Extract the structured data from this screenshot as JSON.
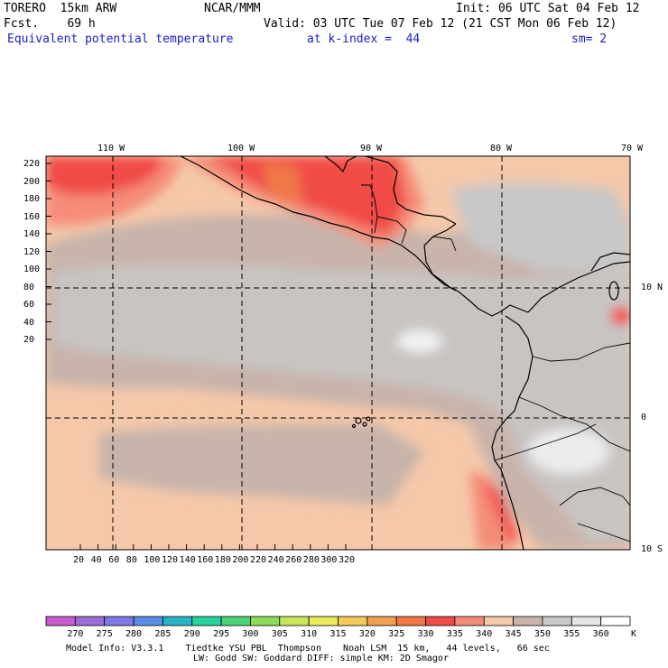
{
  "header": {
    "model": "TORERO  15km ARW",
    "center": "NCAR/MMM",
    "init": "Init: 06 UTC Sat 04 Feb 12",
    "fcst": "Fcst.    69 h",
    "valid": "Valid: 03 UTC Tue 07 Feb 12 (21 CST Mon 06 Feb 12)",
    "field": "Equivalent potential temperature",
    "level": "at k-index =  44",
    "smooth": "sm= 2"
  },
  "map": {
    "top_lon_labels": [
      "110 W",
      "100 W",
      "90 W",
      "80 W",
      "70 W"
    ],
    "right_lat_labels": [
      "10 N",
      "0",
      "10 S"
    ],
    "y_ticks": [
      "220",
      "200",
      "180",
      "160",
      "140",
      "120",
      "100",
      "80",
      "60",
      "40",
      "20"
    ],
    "x_ticks": [
      "20",
      "40",
      "60",
      "80",
      "100",
      "120",
      "140",
      "160",
      "180",
      "200",
      "220",
      "240",
      "260",
      "280",
      "300",
      "320"
    ]
  },
  "colorbar": {
    "labels": [
      "270",
      "275",
      "280",
      "285",
      "290",
      "295",
      "300",
      "305",
      "310",
      "315",
      "320",
      "325",
      "330",
      "335",
      "340",
      "345",
      "350",
      "355",
      "360"
    ],
    "unit": "K",
    "colors": [
      "#c85ad2",
      "#9b6ed6",
      "#7f78e6",
      "#5a8ce6",
      "#28b4c8",
      "#28d2a0",
      "#50d278",
      "#8cdc5a",
      "#c8e65a",
      "#ebeb5a",
      "#f5c85a",
      "#f0a050",
      "#f07846",
      "#f04b46",
      "#f58c78",
      "#f5c8aa",
      "#c8b4aa",
      "#c8c8c8",
      "#e6e6e6",
      "#ffffff"
    ]
  },
  "footer": {
    "line1": "Model Info: V3.3.1    Tiedtke YSU PBL  Thompson    Noah LSM  15 km,   44 levels,   66 sec",
    "line2": "LW: Godd SW: Goddard DIFF: simple KM: 2D Smagor"
  }
}
